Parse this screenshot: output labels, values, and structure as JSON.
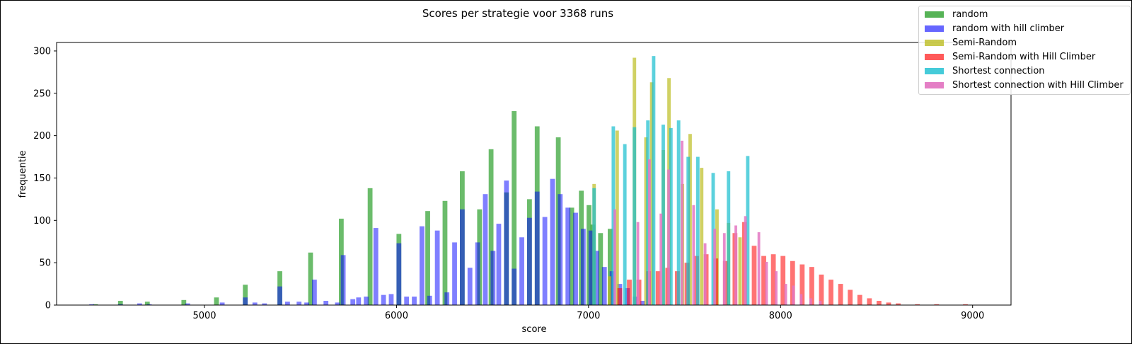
{
  "chart_data": {
    "type": "histogram",
    "title": "Scores per strategie voor 3368 runs",
    "xlabel": "score",
    "ylabel": "frequentie",
    "xlim": [
      4230,
      9200
    ],
    "ylim": [
      0,
      310
    ],
    "xticks": [
      5000,
      6000,
      7000,
      8000,
      9000
    ],
    "yticks": [
      0,
      50,
      100,
      150,
      200,
      250,
      300
    ],
    "grid": false,
    "legend_position": "upper-right (partly outside axes)",
    "series": [
      {
        "name": "random",
        "color": "#2ca02c",
        "opacity": 0.7,
        "bin_width": 25,
        "bins": [
          [
            4420,
            1
          ],
          [
            4550,
            5
          ],
          [
            4690,
            4
          ],
          [
            4880,
            6
          ],
          [
            5050,
            9
          ],
          [
            5200,
            24
          ],
          [
            5380,
            40
          ],
          [
            5540,
            62
          ],
          [
            5700,
            102
          ],
          [
            5850,
            138
          ],
          [
            6000,
            84
          ],
          [
            6150,
            111
          ],
          [
            6240,
            123
          ],
          [
            6330,
            158
          ],
          [
            6420,
            113
          ],
          [
            6480,
            184
          ],
          [
            6560,
            133
          ],
          [
            6600,
            229
          ],
          [
            6680,
            125
          ],
          [
            6720,
            211
          ],
          [
            6830,
            198
          ],
          [
            6900,
            115
          ],
          [
            6950,
            135
          ],
          [
            6990,
            118
          ],
          [
            7010,
            95
          ],
          [
            7050,
            85
          ],
          [
            7100,
            90
          ]
        ]
      },
      {
        "name": "random with hill climber",
        "color": "#0000ff",
        "opacity": 0.5,
        "bin_width": 25,
        "bins": [
          [
            4400,
            1
          ],
          [
            4550,
            1
          ],
          [
            4650,
            2
          ],
          [
            4700,
            1
          ],
          [
            4900,
            2
          ],
          [
            5080,
            3
          ],
          [
            5200,
            9
          ],
          [
            5250,
            3
          ],
          [
            5300,
            2
          ],
          [
            5380,
            22
          ],
          [
            5420,
            4
          ],
          [
            5480,
            4
          ],
          [
            5520,
            3
          ],
          [
            5560,
            30
          ],
          [
            5620,
            5
          ],
          [
            5680,
            3
          ],
          [
            5710,
            59
          ],
          [
            5760,
            7
          ],
          [
            5790,
            9
          ],
          [
            5830,
            10
          ],
          [
            5880,
            91
          ],
          [
            5920,
            12
          ],
          [
            5960,
            13
          ],
          [
            6000,
            73
          ],
          [
            6040,
            10
          ],
          [
            6080,
            10
          ],
          [
            6120,
            93
          ],
          [
            6160,
            11
          ],
          [
            6200,
            88
          ],
          [
            6250,
            15
          ],
          [
            6290,
            74
          ],
          [
            6330,
            113
          ],
          [
            6370,
            44
          ],
          [
            6410,
            74
          ],
          [
            6450,
            131
          ],
          [
            6490,
            64
          ],
          [
            6520,
            96
          ],
          [
            6560,
            147
          ],
          [
            6600,
            43
          ],
          [
            6640,
            80
          ],
          [
            6680,
            103
          ],
          [
            6720,
            134
          ],
          [
            6760,
            104
          ],
          [
            6800,
            149
          ],
          [
            6840,
            131
          ],
          [
            6880,
            115
          ],
          [
            6920,
            109
          ],
          [
            6960,
            90
          ],
          [
            7000,
            88
          ],
          [
            7030,
            64
          ],
          [
            7070,
            45
          ],
          [
            7110,
            40
          ],
          [
            7150,
            25
          ],
          [
            7190,
            20
          ],
          [
            7230,
            10
          ],
          [
            7270,
            5
          ]
        ]
      },
      {
        "name": "Semi-Random",
        "color": "#bcbd22",
        "opacity": 0.7,
        "bin_width": 18,
        "bins": [
          [
            7020,
            143
          ],
          [
            7100,
            34
          ],
          [
            7140,
            206
          ],
          [
            7230,
            292
          ],
          [
            7290,
            198
          ],
          [
            7320,
            263
          ],
          [
            7380,
            183
          ],
          [
            7410,
            268
          ],
          [
            7480,
            143
          ],
          [
            7520,
            202
          ],
          [
            7580,
            162
          ],
          [
            7660,
            113
          ],
          [
            7720,
            97
          ],
          [
            7780,
            80
          ]
        ]
      },
      {
        "name": "Semi-Random with Hill Climber",
        "color": "#ff0000",
        "opacity": 0.55,
        "bin_width": 25,
        "bins": [
          [
            7150,
            20
          ],
          [
            7200,
            30
          ],
          [
            7250,
            30
          ],
          [
            7300,
            40
          ],
          [
            7350,
            40
          ],
          [
            7400,
            44
          ],
          [
            7450,
            40
          ],
          [
            7500,
            50
          ],
          [
            7550,
            58
          ],
          [
            7600,
            60
          ],
          [
            7650,
            55
          ],
          [
            7700,
            52
          ],
          [
            7750,
            85
          ],
          [
            7800,
            98
          ],
          [
            7850,
            70
          ],
          [
            7900,
            58
          ],
          [
            7950,
            60
          ],
          [
            8000,
            58
          ],
          [
            8050,
            52
          ],
          [
            8100,
            48
          ],
          [
            8150,
            45
          ],
          [
            8200,
            36
          ],
          [
            8250,
            30
          ],
          [
            8300,
            25
          ],
          [
            8350,
            18
          ],
          [
            8400,
            12
          ],
          [
            8450,
            8
          ],
          [
            8500,
            5
          ],
          [
            8550,
            3
          ],
          [
            8600,
            2
          ],
          [
            8700,
            1
          ],
          [
            8800,
            1
          ],
          [
            8950,
            1
          ]
        ]
      },
      {
        "name": "Shortest connection",
        "color": "#17becf",
        "opacity": 0.7,
        "bin_width": 18,
        "bins": [
          [
            7020,
            138
          ],
          [
            7120,
            211
          ],
          [
            7180,
            190
          ],
          [
            7230,
            210
          ],
          [
            7300,
            218
          ],
          [
            7330,
            294
          ],
          [
            7380,
            213
          ],
          [
            7420,
            209
          ],
          [
            7460,
            218
          ],
          [
            7510,
            175
          ],
          [
            7560,
            175
          ],
          [
            7640,
            156
          ],
          [
            7720,
            158
          ],
          [
            7820,
            176
          ]
        ]
      },
      {
        "name": "Shortest connection with Hill Climber",
        "color": "#e377c2",
        "opacity": 0.85,
        "bin_width": 14,
        "bins": [
          [
            7130,
            113
          ],
          [
            7250,
            98
          ],
          [
            7310,
            172
          ],
          [
            7370,
            108
          ],
          [
            7410,
            160
          ],
          [
            7480,
            194
          ],
          [
            7540,
            118
          ],
          [
            7600,
            73
          ],
          [
            7650,
            90
          ],
          [
            7700,
            85
          ],
          [
            7760,
            94
          ],
          [
            7810,
            105
          ],
          [
            7880,
            86
          ],
          [
            7920,
            51
          ],
          [
            7970,
            40
          ],
          [
            8020,
            25
          ],
          [
            8060,
            23
          ],
          [
            8100,
            13
          ],
          [
            8150,
            8
          ],
          [
            8200,
            5
          ]
        ]
      }
    ]
  }
}
